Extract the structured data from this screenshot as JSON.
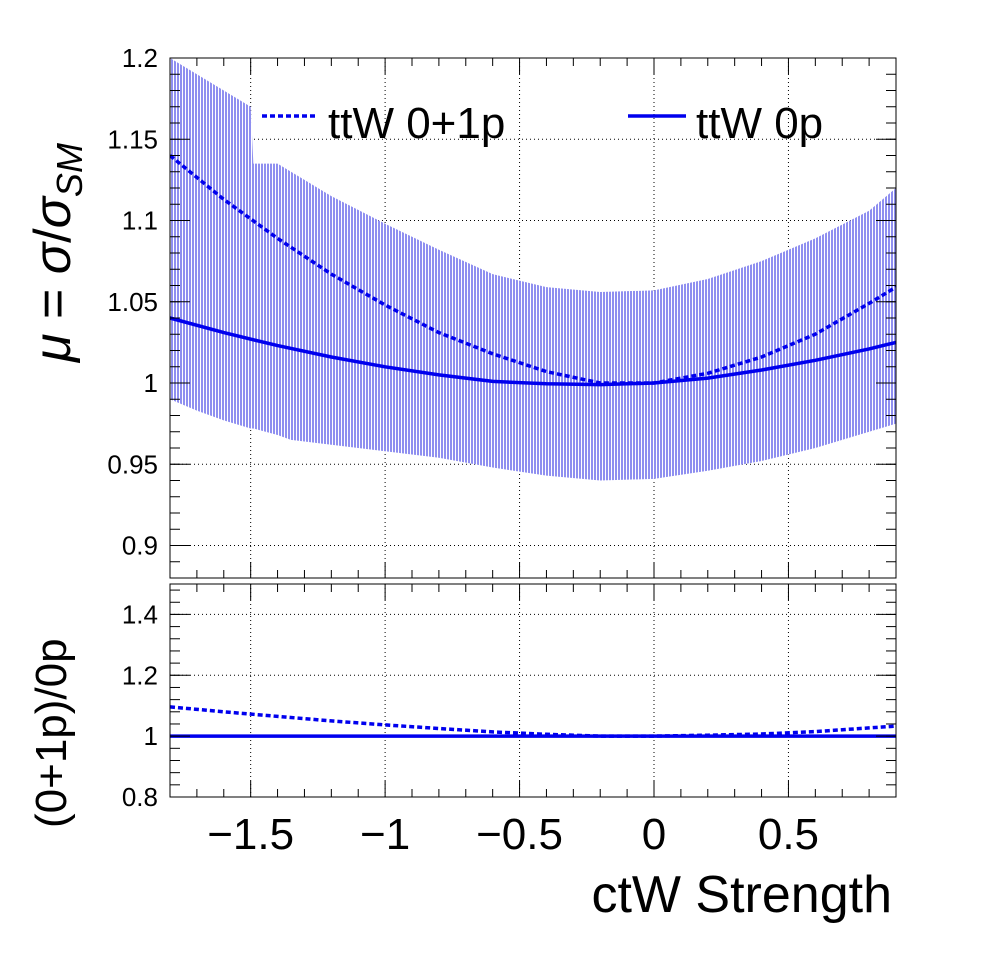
{
  "colors": {
    "line": "#0000ee",
    "band": "#8f8ff0"
  },
  "chart_data": [
    {
      "type": "line",
      "panel": "main",
      "ylabel_parts": {
        "mu": "μ",
        "eq": " = ",
        "sig": "σ",
        "slash": "/",
        "sig2": "σ",
        "sub": "SM"
      },
      "xlim": [
        -1.8,
        0.9
      ],
      "ylim": [
        0.88,
        1.2
      ],
      "yticks": [
        {
          "v": 0.9,
          "label": "0.9"
        },
        {
          "v": 0.95,
          "label": "0.95"
        },
        {
          "v": 1.0,
          "label": "1"
        },
        {
          "v": 1.05,
          "label": "1.05"
        },
        {
          "v": 1.1,
          "label": "1.1"
        },
        {
          "v": 1.15,
          "label": "1.15"
        },
        {
          "v": 1.2,
          "label": "1.2"
        }
      ],
      "grid": true,
      "legend_position": "top",
      "series": [
        {
          "name": "ttW 0+1p",
          "style": "dashed",
          "x": [
            -1.8,
            -1.6,
            -1.4,
            -1.2,
            -1.0,
            -0.8,
            -0.6,
            -0.4,
            -0.2,
            0.0,
            0.2,
            0.4,
            0.6,
            0.8,
            0.9
          ],
          "y": [
            1.14,
            1.113,
            1.089,
            1.067,
            1.048,
            1.031,
            1.018,
            1.007,
            1.0,
            1.0,
            1.006,
            1.016,
            1.03,
            1.049,
            1.059
          ]
        },
        {
          "name": "ttW 0p",
          "style": "solid",
          "x": [
            -1.8,
            -1.6,
            -1.4,
            -1.2,
            -1.0,
            -0.8,
            -0.6,
            -0.4,
            -0.2,
            0.0,
            0.2,
            0.4,
            0.6,
            0.8,
            0.9
          ],
          "y": [
            1.04,
            1.031,
            1.023,
            1.016,
            1.01,
            1.005,
            1.001,
            0.9995,
            0.999,
            1.0,
            1.003,
            1.008,
            1.014,
            1.021,
            1.025
          ]
        }
      ],
      "band": {
        "x": [
          -1.8,
          -1.7,
          -1.6,
          -1.5,
          -1.49,
          -1.4,
          -1.35,
          -1.2,
          -1.0,
          -0.8,
          -0.6,
          -0.4,
          -0.2,
          0.0,
          0.2,
          0.4,
          0.6,
          0.8,
          0.9
        ],
        "upper": [
          1.2,
          1.19,
          1.18,
          1.17,
          1.135,
          1.135,
          1.13,
          1.115,
          1.098,
          1.082,
          1.067,
          1.059,
          1.056,
          1.057,
          1.064,
          1.075,
          1.089,
          1.106,
          1.12
        ],
        "lower": [
          0.99,
          0.983,
          0.977,
          0.972,
          0.972,
          0.968,
          0.965,
          0.962,
          0.958,
          0.954,
          0.948,
          0.943,
          0.94,
          0.941,
          0.946,
          0.952,
          0.96,
          0.97,
          0.975
        ]
      }
    },
    {
      "type": "line",
      "panel": "ratio",
      "ylabel": "(0+1p)/0p",
      "xlabel": "ctW Strength",
      "xlim": [
        -1.8,
        0.9
      ],
      "ylim": [
        0.8,
        1.5
      ],
      "yticks": [
        {
          "v": 0.8,
          "label": "0.8"
        },
        {
          "v": 1.0,
          "label": "1"
        },
        {
          "v": 1.2,
          "label": "1.2"
        },
        {
          "v": 1.4,
          "label": "1.4"
        }
      ],
      "xticks": [
        {
          "v": -1.5,
          "label": "−1.5"
        },
        {
          "v": -1.0,
          "label": "−1"
        },
        {
          "v": -0.5,
          "label": "−0.5"
        },
        {
          "v": 0.0,
          "label": "0"
        },
        {
          "v": 0.5,
          "label": "0.5"
        }
      ],
      "grid": true,
      "series": [
        {
          "name": "ttW 0+1p",
          "style": "dashed",
          "x": [
            -1.8,
            -1.6,
            -1.4,
            -1.2,
            -1.0,
            -0.8,
            -0.6,
            -0.4,
            -0.2,
            0.0,
            0.2,
            0.4,
            0.6,
            0.8,
            0.9
          ],
          "y": [
            1.096,
            1.08,
            1.065,
            1.05,
            1.037,
            1.025,
            1.014,
            1.006,
            1.0,
            1.0,
            1.003,
            1.007,
            1.015,
            1.027,
            1.033
          ]
        },
        {
          "name": "ttW 0p",
          "style": "solid",
          "x": [
            -1.8,
            0.9
          ],
          "y": [
            1.0,
            1.0
          ]
        }
      ]
    }
  ]
}
